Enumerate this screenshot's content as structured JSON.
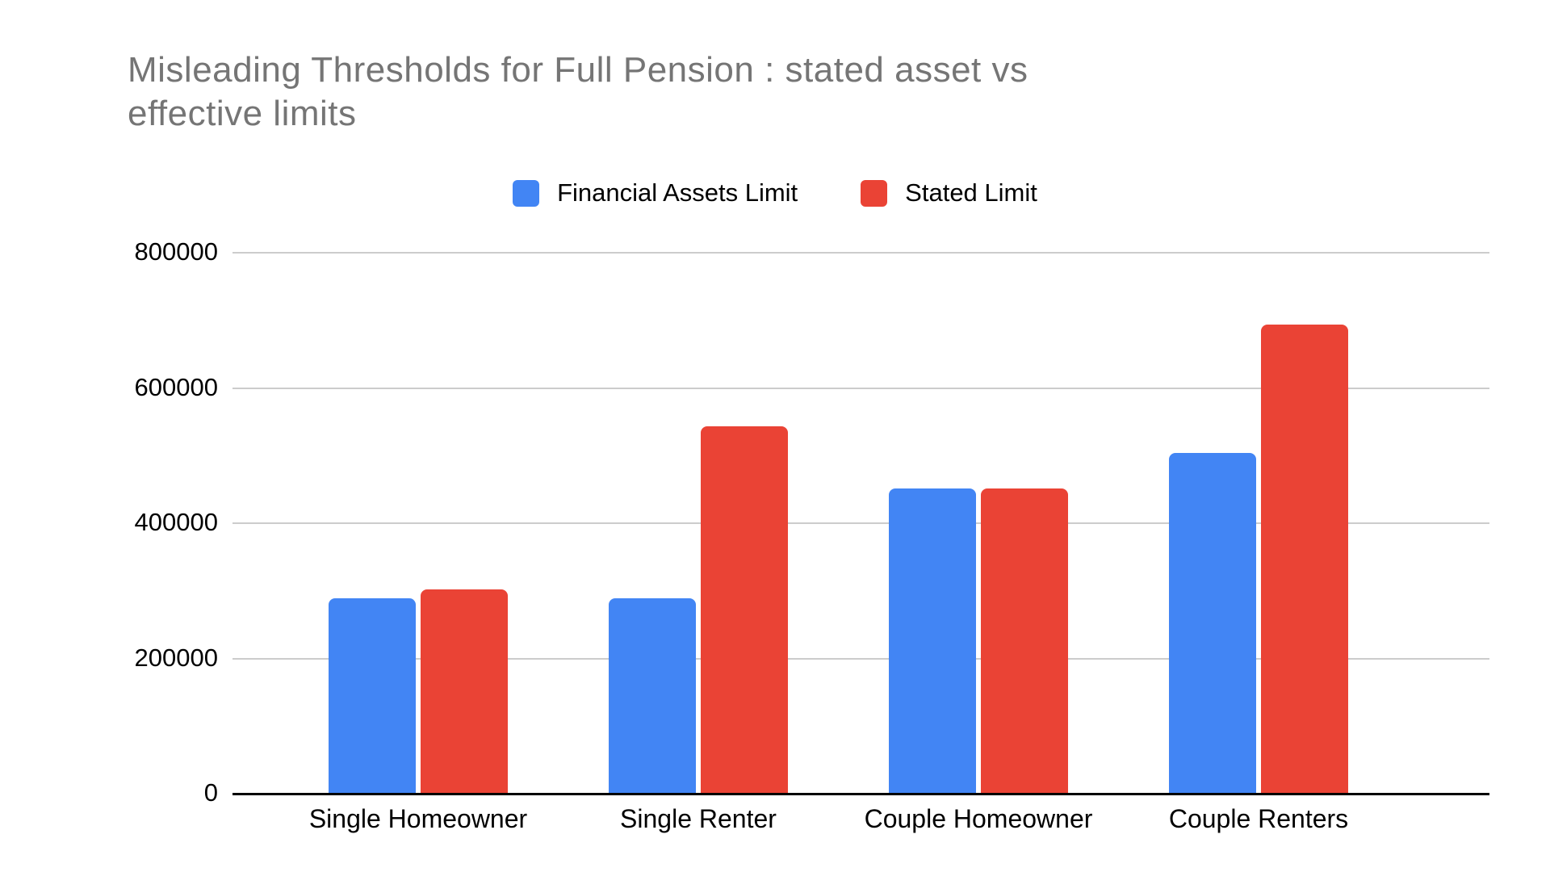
{
  "title": {
    "line1": "Misleading Thresholds for Full Pension : stated asset vs",
    "line2": "effective limits",
    "color": "#757575"
  },
  "chart_data": {
    "type": "bar",
    "title": "Misleading Thresholds for Full Pension : stated asset vs effective limits",
    "categories": [
      "Single Homeowner",
      "Single Renter",
      "Couple Homeowner",
      "Couple Renters"
    ],
    "series": [
      {
        "name": "Financial Assets Limit",
        "color": "#4285F4",
        "values": [
          289500,
          289500,
          451500,
          504500
        ]
      },
      {
        "name": "Stated Limit",
        "color": "#EA4335",
        "values": [
          301750,
          543750,
          451500,
          693500
        ]
      }
    ],
    "xlabel": "",
    "ylabel": "",
    "ylim": [
      0,
      800000
    ],
    "yticks": [
      0,
      200000,
      400000,
      600000,
      800000
    ],
    "ytick_labels": [
      "0",
      "200000",
      "400000",
      "600000",
      "800000"
    ],
    "grid": true,
    "legend_position": "top",
    "colors": {
      "grid": "#cccccc",
      "axis_line": "#000000",
      "tick_text": "#000000",
      "title_text": "#757575"
    }
  }
}
